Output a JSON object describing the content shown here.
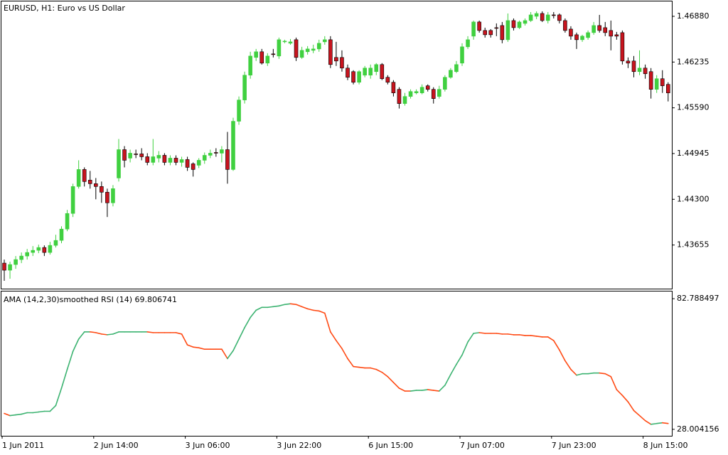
{
  "chart_data": [
    {
      "type": "candlestick",
      "title": "EURUSD, H1:  Euro vs US Dollar",
      "open": [
        1.434,
        1.433,
        1.4338,
        1.4345,
        1.435,
        1.4355,
        1.4358,
        1.4362,
        1.4355,
        1.4365,
        1.4372,
        1.4388,
        1.441,
        1.4448,
        1.4472,
        1.4457,
        1.4452,
        1.4448,
        1.444,
        1.4425,
        1.446,
        1.45,
        1.4488,
        1.4494,
        1.4494,
        1.449,
        1.4482,
        1.4488,
        1.4492,
        1.4482,
        1.4488,
        1.4482,
        1.4486,
        1.448,
        1.4478,
        1.4485,
        1.4492,
        1.4496,
        1.4495,
        1.45,
        1.4472,
        1.454,
        1.457,
        1.4605,
        1.463,
        1.4638,
        1.4622,
        1.4635,
        1.4632,
        1.4652,
        1.465,
        1.4655,
        1.463,
        1.4638,
        1.464,
        1.4642,
        1.4652,
        1.4655,
        1.463,
        1.463,
        1.4615,
        1.461,
        1.4595,
        1.4605,
        1.4605,
        1.461,
        1.462,
        1.4602,
        1.4595,
        1.4585,
        1.4565,
        1.4575,
        1.458,
        1.458,
        1.459,
        1.4585,
        1.4575,
        1.4585,
        1.4602,
        1.461,
        1.4622,
        1.4645,
        1.466,
        1.468,
        1.4668,
        1.4668,
        1.4672,
        1.4675,
        1.4655,
        1.4682,
        1.4672,
        1.4678,
        1.4682,
        1.4688,
        1.4692,
        1.4682,
        1.469,
        1.469,
        1.4682,
        1.467,
        1.4662,
        1.4655,
        1.4658,
        1.4665,
        1.4675,
        1.4672,
        1.4668,
        1.4662,
        1.4665,
        1.4625,
        1.4625,
        1.461,
        1.4615,
        1.461,
        1.4585,
        1.46,
        1.4592
      ],
      "high": [
        1.4345,
        1.4342,
        1.435,
        1.4355,
        1.436,
        1.4364,
        1.4366,
        1.4365,
        1.437,
        1.438,
        1.4392,
        1.4415,
        1.4452,
        1.4485,
        1.4475,
        1.447,
        1.446,
        1.4455,
        1.4445,
        1.445,
        1.4515,
        1.4505,
        1.45,
        1.45,
        1.4502,
        1.4495,
        1.4515,
        1.4498,
        1.4495,
        1.4492,
        1.4492,
        1.449,
        1.449,
        1.4482,
        1.4488,
        1.4496,
        1.45,
        1.4502,
        1.4505,
        1.4525,
        1.4545,
        1.4575,
        1.461,
        1.4638,
        1.4642,
        1.4642,
        1.4636,
        1.4642,
        1.4658,
        1.4655,
        1.4656,
        1.4658,
        1.4645,
        1.4646,
        1.4648,
        1.4655,
        1.466,
        1.466,
        1.4652,
        1.464,
        1.462,
        1.4612,
        1.4612,
        1.4618,
        1.462,
        1.4622,
        1.4622,
        1.4605,
        1.4598,
        1.4588,
        1.458,
        1.4585,
        1.4585,
        1.4592,
        1.4592,
        1.4588,
        1.459,
        1.4605,
        1.4615,
        1.4625,
        1.465,
        1.466,
        1.4682,
        1.4682,
        1.4672,
        1.467,
        1.4678,
        1.468,
        1.4692,
        1.4685,
        1.4682,
        1.4685,
        1.4694,
        1.4695,
        1.4695,
        1.4694,
        1.4694,
        1.4692,
        1.4685,
        1.4674,
        1.4665,
        1.4662,
        1.4668,
        1.468,
        1.469,
        1.468,
        1.4682,
        1.4666,
        1.4668,
        1.463,
        1.4632,
        1.464,
        1.462,
        1.4615,
        1.4605,
        1.4612,
        1.4595
      ],
      "low": [
        1.4315,
        1.4318,
        1.4332,
        1.434,
        1.4345,
        1.435,
        1.4354,
        1.435,
        1.4352,
        1.4362,
        1.4368,
        1.4385,
        1.4405,
        1.4445,
        1.4448,
        1.4445,
        1.443,
        1.4425,
        1.4405,
        1.442,
        1.4455,
        1.4475,
        1.4482,
        1.4488,
        1.4485,
        1.4478,
        1.4478,
        1.4482,
        1.4478,
        1.4478,
        1.4478,
        1.4476,
        1.447,
        1.4462,
        1.4474,
        1.448,
        1.4488,
        1.449,
        1.4482,
        1.4452,
        1.447,
        1.4535,
        1.4565,
        1.46,
        1.4625,
        1.462,
        1.4618,
        1.463,
        1.4628,
        1.465,
        1.4648,
        1.4625,
        1.4628,
        1.4634,
        1.4636,
        1.4638,
        1.4648,
        1.4615,
        1.4618,
        1.461,
        1.4598,
        1.4592,
        1.4592,
        1.4602,
        1.46,
        1.4605,
        1.4598,
        1.4592,
        1.4575,
        1.4558,
        1.4562,
        1.4572,
        1.4578,
        1.4578,
        1.4582,
        1.4565,
        1.4572,
        1.4582,
        1.46,
        1.4608,
        1.4618,
        1.4642,
        1.4655,
        1.4665,
        1.4658,
        1.4658,
        1.466,
        1.465,
        1.4652,
        1.4668,
        1.467,
        1.4675,
        1.468,
        1.4684,
        1.468,
        1.4678,
        1.4685,
        1.4678,
        1.4665,
        1.4655,
        1.4642,
        1.4652,
        1.4655,
        1.4662,
        1.4665,
        1.466,
        1.464,
        1.4655,
        1.462,
        1.4615,
        1.4602,
        1.4605,
        1.46,
        1.4572,
        1.458,
        1.458,
        1.4568
      ],
      "close": [
        1.433,
        1.4338,
        1.4345,
        1.435,
        1.4355,
        1.4358,
        1.4362,
        1.4355,
        1.4365,
        1.4372,
        1.4388,
        1.441,
        1.4448,
        1.4472,
        1.4455,
        1.4452,
        1.4448,
        1.444,
        1.4425,
        1.4445,
        1.45,
        1.4485,
        1.4495,
        1.4493,
        1.449,
        1.4482,
        1.449,
        1.4492,
        1.4482,
        1.4488,
        1.4482,
        1.4486,
        1.4475,
        1.4472,
        1.4485,
        1.4492,
        1.4495,
        1.4495,
        1.45,
        1.4472,
        1.454,
        1.457,
        1.4605,
        1.4632,
        1.4638,
        1.4622,
        1.4632,
        1.4634,
        1.4655,
        1.4653,
        1.4652,
        1.463,
        1.464,
        1.4642,
        1.4642,
        1.465,
        1.4655,
        1.462,
        1.4625,
        1.4615,
        1.4602,
        1.4595,
        1.461,
        1.4615,
        1.4615,
        1.462,
        1.46,
        1.4595,
        1.458,
        1.4565,
        1.4575,
        1.4582,
        1.4582,
        1.4588,
        1.4585,
        1.4572,
        1.4585,
        1.4602,
        1.4612,
        1.462,
        1.4645,
        1.4655,
        1.468,
        1.4668,
        1.4662,
        1.4662,
        1.4671,
        1.4655,
        1.4682,
        1.4672,
        1.468,
        1.4682,
        1.469,
        1.4692,
        1.4682,
        1.469,
        1.4689,
        1.4682,
        1.4668,
        1.466,
        1.4655,
        1.466,
        1.4665,
        1.4675,
        1.4668,
        1.4665,
        1.466,
        1.466,
        1.4625,
        1.4622,
        1.461,
        1.4615,
        1.4607,
        1.4585,
        1.46,
        1.459,
        1.458
      ],
      "up_color": "#40d040",
      "down_color": "#c8141e",
      "ylim": [
        1.4304,
        1.471
      ],
      "yticks": [
        {
          "value": 1.4688,
          "label": "1.46880"
        },
        1.46235,
        {
          "value": 1.4559,
          "label": "1.45590"
        },
        1.44945,
        {
          "value": 1.443,
          "label": "1.44300"
        },
        1.43655
      ]
    },
    {
      "type": "line",
      "title": "AMA (14,2,30)smoothed RSI (14) 69.806741",
      "categories": [
        "1 Jun 2011",
        null,
        null,
        null,
        null,
        null,
        null,
        null,
        null,
        null,
        null,
        null,
        null,
        null,
        null,
        null,
        "2 Jun 14:00",
        null,
        null,
        null,
        null,
        null,
        null,
        null,
        null,
        null,
        null,
        null,
        null,
        null,
        null,
        null,
        "3 Jun 06:00",
        null,
        null,
        null,
        null,
        null,
        null,
        null,
        null,
        null,
        null,
        null,
        null,
        null,
        null,
        null,
        "3 Jun 22:00",
        null,
        null,
        null,
        null,
        null,
        null,
        null,
        null,
        null,
        null,
        null,
        null,
        null,
        null,
        null,
        "6 Jun 15:00",
        null,
        null,
        null,
        null,
        null,
        null,
        null,
        null,
        null,
        null,
        null,
        null,
        null,
        null,
        null,
        "7 Jun 07:00",
        null,
        null,
        null,
        null,
        null,
        null,
        null,
        null,
        null,
        null,
        null,
        null,
        null,
        null,
        null,
        "7 Jun 23:00",
        null,
        null,
        null,
        null,
        null,
        null,
        null,
        null,
        null,
        null,
        null,
        null,
        null,
        null,
        null,
        "8 Jun 15:00",
        null,
        null,
        null,
        null
      ],
      "values": [
        34.66,
        33.76,
        34.06,
        34.36,
        34.97,
        34.97,
        35.27,
        35.57,
        35.57,
        37.99,
        45.26,
        53.13,
        60.69,
        65.84,
        68.87,
        68.87,
        68.56,
        67.96,
        67.66,
        67.96,
        68.87,
        68.87,
        68.87,
        68.87,
        68.87,
        68.87,
        68.56,
        68.56,
        68.56,
        68.56,
        68.56,
        67.96,
        63.42,
        62.51,
        62.21,
        61.6,
        61.6,
        61.6,
        61.6,
        57.67,
        61.0,
        65.84,
        70.68,
        74.92,
        77.95,
        79.16,
        79.16,
        79.46,
        79.76,
        80.37,
        80.67,
        80.37,
        79.46,
        78.55,
        77.95,
        77.64,
        76.74,
        68.87,
        65.23,
        61.9,
        57.67,
        54.34,
        54.03,
        53.73,
        53.73,
        53.13,
        51.92,
        50.1,
        47.68,
        45.26,
        44.05,
        44.05,
        44.35,
        44.35,
        44.65,
        44.35,
        44.05,
        46.47,
        51.01,
        55.25,
        59.18,
        64.63,
        68.26,
        68.56,
        68.26,
        68.26,
        68.26,
        67.96,
        67.96,
        67.66,
        67.66,
        67.35,
        67.35,
        67.05,
        66.75,
        66.75,
        65.23,
        61.3,
        56.76,
        53.13,
        50.71,
        51.31,
        51.31,
        51.61,
        51.61,
        51.31,
        50.1,
        44.65,
        42.23,
        39.51,
        35.87,
        33.76,
        31.64,
        30.12,
        30.43,
        30.73,
        30.43
      ],
      "up_color": "#3cb371",
      "down_color": "#ff4a14",
      "ylim": [
        25.28,
        85.82
      ],
      "yticks": [
        82.788497,
        28.004156
      ]
    }
  ]
}
